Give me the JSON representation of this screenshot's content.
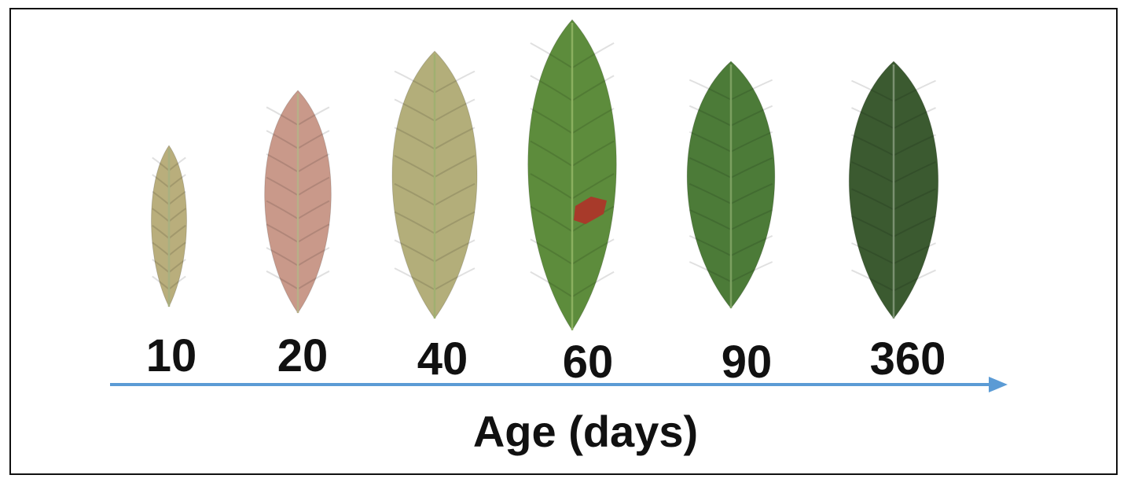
{
  "figure": {
    "age_labels": [
      "10",
      "20",
      "40",
      "60",
      "90",
      "360"
    ],
    "axis_title": "Age (days)",
    "leaf_colors": [
      "#b9ae7c",
      "#c9998a",
      "#b3ae7a",
      "#5d8c3c",
      "#4c7b38",
      "#3b5a30"
    ],
    "midrib_colors": [
      "#a8b080",
      "#b8b088",
      "#a0b070",
      "#8bb060",
      "#7ba060",
      "#7a9070"
    ],
    "damage_patch_color": "#a83a2a",
    "arrow_color": "#5b9bd5"
  }
}
